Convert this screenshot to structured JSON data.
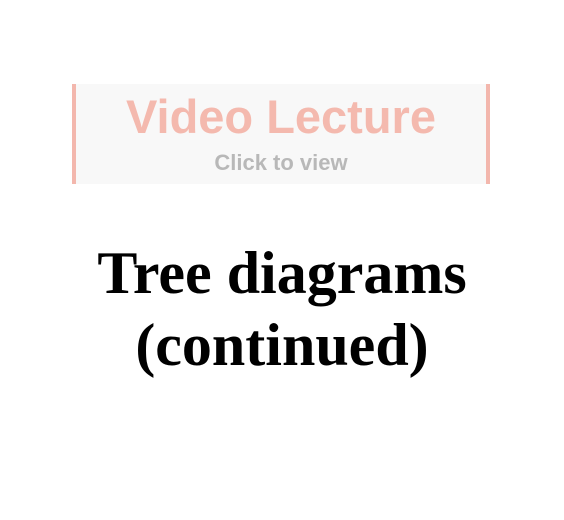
{
  "video_banner": {
    "title": "Video Lecture",
    "subtitle": "Click to view",
    "accent_color": "#f3b7ad"
  },
  "slide": {
    "title_line1": "Tree diagrams",
    "title_line2": "(continued)"
  }
}
